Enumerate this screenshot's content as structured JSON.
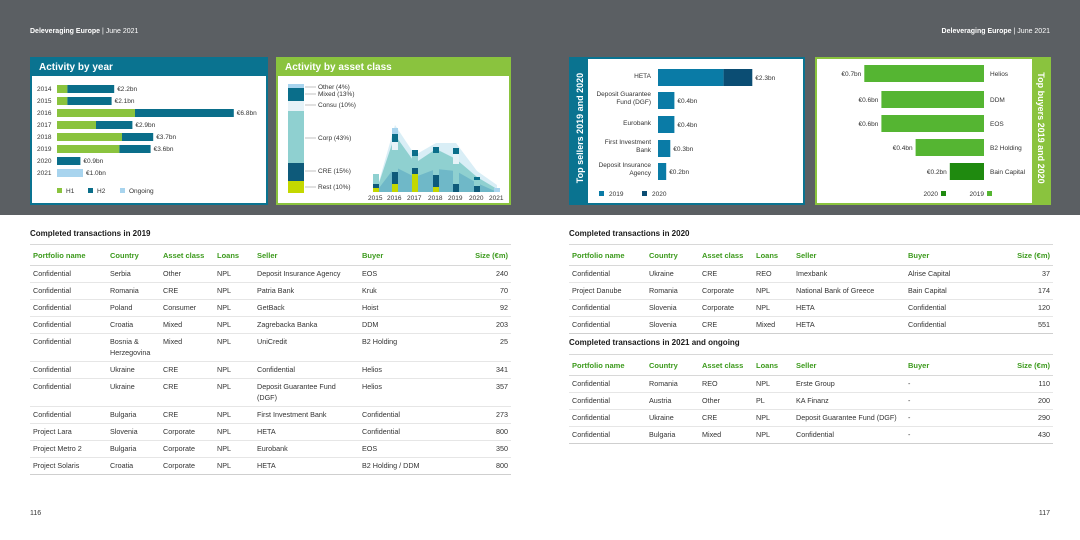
{
  "header": {
    "left_brand": "Deleveraging Europe",
    "left_date": "| June 2021",
    "right_brand": "Deleveraging Europe",
    "right_date": "| June 2021"
  },
  "activity_by_year": {
    "title": "Activity by year",
    "legend": [
      "H1",
      "H2",
      "Ongoing"
    ],
    "colors": {
      "h1": "#8ac33e",
      "h2": "#0a6e8a",
      "ongoing": "#a8d4ee"
    },
    "rows": [
      {
        "year": "2014",
        "h1": 0.4,
        "h2": 1.8,
        "ongoing": 0,
        "label": "€2.2bn"
      },
      {
        "year": "2015",
        "h1": 0.4,
        "h2": 1.7,
        "ongoing": 0,
        "label": "€2.1bn"
      },
      {
        "year": "2016",
        "h1": 3.0,
        "h2": 3.8,
        "ongoing": 0,
        "label": "€6.8bn"
      },
      {
        "year": "2017",
        "h1": 1.5,
        "h2": 1.4,
        "ongoing": 0,
        "label": "€2.9bn"
      },
      {
        "year": "2018",
        "h1": 2.5,
        "h2": 1.2,
        "ongoing": 0,
        "label": "€3.7bn"
      },
      {
        "year": "2019",
        "h1": 2.4,
        "h2": 1.2,
        "ongoing": 0,
        "label": "€3.6bn"
      },
      {
        "year": "2020",
        "h1": 0,
        "h2": 0.9,
        "ongoing": 0,
        "label": "€0.9bn"
      },
      {
        "year": "2021",
        "h1": 0,
        "h2": 0,
        "ongoing": 1.0,
        "label": "€1.0bn"
      }
    ]
  },
  "activity_by_asset": {
    "title": "Activity by asset class",
    "legend": [
      {
        "label": "Other (4%)",
        "color": "#a8d4ee"
      },
      {
        "label": "Mixed (13%)",
        "color": "#0a6e8a"
      },
      {
        "label": "Consu (10%)",
        "color": "#e6f2f7"
      },
      {
        "label": "Corp (43%)",
        "color": "#8fd0d0"
      },
      {
        "label": "CRE (15%)",
        "color": "#0e5a7a"
      },
      {
        "label": "Rest (10%)",
        "color": "#c4d800"
      }
    ],
    "years": [
      "2015",
      "2016",
      "2017",
      "2018",
      "2019",
      "2020",
      "2021"
    ]
  },
  "top_sellers": {
    "title": "Top sellers 2019 and 2020",
    "legend": [
      "2019",
      "2020"
    ],
    "rows": [
      {
        "name": "HETA",
        "v2019": 1.6,
        "v2020": 0.7,
        "label": "€2.3bn"
      },
      {
        "name": "Deposit Guarantee Fund (DGF)",
        "v2019": 0.4,
        "v2020": 0,
        "label": "€0.4bn"
      },
      {
        "name": "Eurobank",
        "v2019": 0.4,
        "v2020": 0,
        "label": "€0.4bn"
      },
      {
        "name": "First Investment Bank",
        "v2019": 0.3,
        "v2020": 0,
        "label": "€0.3bn"
      },
      {
        "name": "Deposit Insurance Agency",
        "v2019": 0.2,
        "v2020": 0,
        "label": "€0.2bn"
      }
    ]
  },
  "top_buyers": {
    "title": "Top buyers 2019 and 2020",
    "legend": [
      "2020",
      "2019"
    ],
    "rows": [
      {
        "name": "Helios",
        "v2019": 0.7,
        "v2020": 0,
        "label": "€0.7bn"
      },
      {
        "name": "DDM",
        "v2019": 0.6,
        "v2020": 0,
        "label": "€0.6bn"
      },
      {
        "name": "EOS",
        "v2019": 0.6,
        "v2020": 0,
        "label": "€0.6bn"
      },
      {
        "name": "B2 Holding",
        "v2019": 0.4,
        "v2020": 0,
        "label": "€0.4bn"
      },
      {
        "name": "Bain Capital",
        "v2019": 0,
        "v2020": 0.2,
        "label": "€0.2bn"
      }
    ]
  },
  "tx2019": {
    "title": "Completed transactions in 2019",
    "headers": [
      "Portfolio name",
      "Country",
      "Asset class",
      "Loans",
      "Seller",
      "Buyer",
      "Size (€m)"
    ],
    "rows": [
      [
        "Confidential",
        "Serbia",
        "Other",
        "NPL",
        "Deposit Insurance Agency",
        "EOS",
        "240"
      ],
      [
        "Confidential",
        "Romania",
        "CRE",
        "NPL",
        "Patria Bank",
        "Kruk",
        "70"
      ],
      [
        "Confidential",
        "Poland",
        "Consumer",
        "NPL",
        "GetBack",
        "Hoist",
        "92"
      ],
      [
        "Confidential",
        "Croatia",
        "Mixed",
        "NPL",
        "Zagrebacka Banka",
        "DDM",
        "203"
      ],
      [
        "Confidential",
        "Bosnia & Herzegovina",
        "Mixed",
        "NPL",
        "UniCredit",
        "B2 Holding",
        "25"
      ],
      [
        "Confidential",
        "Ukraine",
        "CRE",
        "NPL",
        "Confidential",
        "Helios",
        "341"
      ],
      [
        "Confidential",
        "Ukraine",
        "CRE",
        "NPL",
        "Deposit Guarantee Fund (DGF)",
        "Helios",
        "357"
      ],
      [
        "Confidential",
        "Bulgaria",
        "CRE",
        "NPL",
        "First Investment Bank",
        "Confidential",
        "273"
      ],
      [
        "Project Lara",
        "Slovenia",
        "Corporate",
        "NPL",
        "HETA",
        "Confidential",
        "800"
      ],
      [
        "Project Metro 2",
        "Bulgaria",
        "Corporate",
        "NPL",
        "Eurobank",
        "EOS",
        "350"
      ],
      [
        "Project Solaris",
        "Croatia",
        "Corporate",
        "NPL",
        "HETA",
        "B2 Holding / DDM",
        "800"
      ]
    ]
  },
  "tx2020": {
    "title": "Completed transactions in 2020",
    "headers": [
      "Portfolio name",
      "Country",
      "Asset class",
      "Loans",
      "Seller",
      "Buyer",
      "Size (€m)"
    ],
    "rows": [
      [
        "Confidential",
        "Ukraine",
        "CRE",
        "REO",
        "Imexbank",
        "Alrise Capital",
        "37"
      ],
      [
        "Project Danube",
        "Romania",
        "Corporate",
        "NPL",
        "National Bank of Greece",
        "Bain Capital",
        "174"
      ],
      [
        "Confidential",
        "Slovenia",
        "Corporate",
        "NPL",
        "HETA",
        "Confidential",
        "120"
      ],
      [
        "Confidential",
        "Slovenia",
        "CRE",
        "Mixed",
        "HETA",
        "Confidential",
        "551"
      ]
    ]
  },
  "tx2021": {
    "title": "Completed transactions in 2021 and ongoing",
    "headers": [
      "Portfolio name",
      "Country",
      "Asset class",
      "Loans",
      "Seller",
      "Buyer",
      "Size (€m)"
    ],
    "rows": [
      [
        "Confidential",
        "Romania",
        "REO",
        "NPL",
        "Erste Group",
        "-",
        "110"
      ],
      [
        "Confidential",
        "Austria",
        "Other",
        "PL",
        "KA Finanz",
        "-",
        "200"
      ],
      [
        "Confidential",
        "Ukraine",
        "CRE",
        "NPL",
        "Deposit Guarantee Fund (DGF)",
        "-",
        "290"
      ],
      [
        "Confidential",
        "Bulgaria",
        "Mixed",
        "NPL",
        "Confidential",
        "-",
        "430"
      ]
    ]
  },
  "pages": {
    "left": "116",
    "right": "117"
  }
}
